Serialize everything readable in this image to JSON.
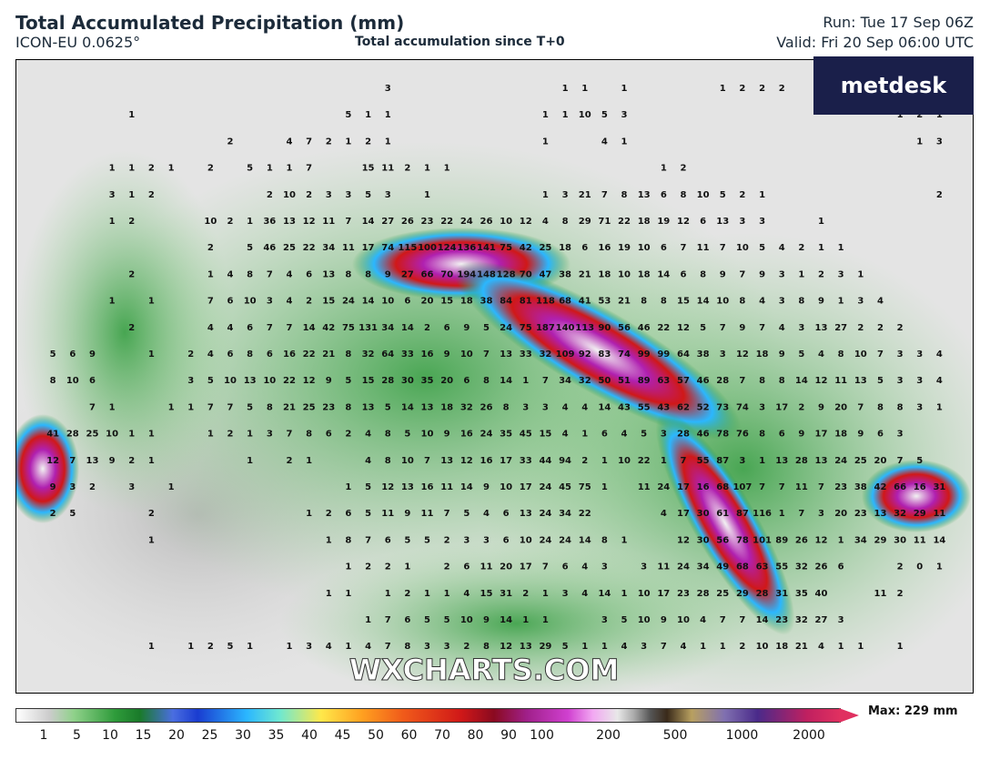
{
  "header": {
    "title": "Total Accumulated Precipitation (mm)",
    "model": "ICON-EU 0.0625°",
    "subtitle": "Total accumulation since T+0",
    "run": "Run: Tue 17 Sep 06Z",
    "valid": "Valid: Fri 20 Sep 06:00 UTC"
  },
  "logo": "metdesk",
  "watermark": "WXCHARTS.COM",
  "colorbar": {
    "ticks": [
      "1",
      "5",
      "10",
      "15",
      "20",
      "25",
      "30",
      "35",
      "40",
      "45",
      "50",
      "60",
      "70",
      "80",
      "90",
      "100",
      "200",
      "500",
      "1000",
      "2000"
    ],
    "max": "Max: 229 mm"
  },
  "map": {
    "rows": [
      [
        null,
        null,
        null,
        null,
        null,
        null,
        null,
        null,
        null,
        null,
        null,
        null,
        null,
        null,
        null,
        null,
        null,
        null,
        3,
        null,
        null,
        null,
        null,
        null,
        null,
        null,
        null,
        1,
        1,
        null,
        1,
        null,
        null,
        null,
        null,
        1,
        2,
        2,
        2
      ],
      [
        null,
        null,
        null,
        null,
        null,
        1,
        null,
        null,
        null,
        null,
        null,
        null,
        null,
        null,
        null,
        null,
        5,
        1,
        1,
        null,
        null,
        null,
        null,
        null,
        null,
        null,
        1,
        1,
        10,
        5,
        3,
        null,
        null,
        null,
        null,
        null,
        null,
        null,
        null,
        null,
        null,
        null,
        null,
        null,
        1,
        2,
        1
      ],
      [
        null,
        null,
        null,
        null,
        null,
        null,
        null,
        null,
        null,
        null,
        2,
        null,
        null,
        4,
        7,
        2,
        1,
        2,
        1,
        null,
        null,
        null,
        null,
        null,
        null,
        null,
        1,
        null,
        null,
        4,
        1,
        null,
        null,
        null,
        null,
        null,
        null,
        null,
        null,
        null,
        null,
        null,
        null,
        null,
        null,
        1,
        3
      ],
      [
        null,
        null,
        null,
        null,
        1,
        1,
        2,
        1,
        null,
        2,
        null,
        5,
        1,
        1,
        7,
        null,
        null,
        15,
        11,
        2,
        1,
        1,
        null,
        null,
        null,
        null,
        null,
        null,
        null,
        null,
        null,
        null,
        1,
        2
      ],
      [
        null,
        null,
        null,
        null,
        3,
        1,
        2,
        null,
        null,
        null,
        null,
        null,
        2,
        10,
        2,
        3,
        3,
        5,
        3,
        null,
        1,
        null,
        null,
        null,
        null,
        null,
        1,
        3,
        21,
        7,
        8,
        13,
        6,
        8,
        10,
        5,
        2,
        1,
        null,
        null,
        null,
        null,
        null,
        null,
        null,
        null,
        2
      ],
      [
        null,
        null,
        null,
        null,
        1,
        2,
        null,
        null,
        null,
        10,
        2,
        1,
        36,
        13,
        12,
        11,
        7,
        14,
        27,
        26,
        23,
        22,
        24,
        26,
        10,
        12,
        4,
        8,
        29,
        71,
        22,
        18,
        19,
        12,
        6,
        13,
        3,
        3,
        null,
        null,
        1
      ],
      [
        null,
        null,
        null,
        null,
        null,
        null,
        null,
        null,
        null,
        2,
        null,
        5,
        46,
        25,
        22,
        34,
        11,
        17,
        74,
        115,
        100,
        124,
        136,
        141,
        75,
        42,
        25,
        18,
        6,
        16,
        19,
        10,
        6,
        7,
        11,
        7,
        10,
        5,
        4,
        2,
        1,
        1
      ],
      [
        null,
        null,
        null,
        null,
        null,
        2,
        null,
        null,
        null,
        1,
        4,
        8,
        7,
        4,
        6,
        13,
        8,
        8,
        9,
        27,
        66,
        70,
        194,
        148,
        128,
        70,
        47,
        38,
        21,
        18,
        10,
        18,
        14,
        6,
        8,
        9,
        7,
        9,
        3,
        1,
        2,
        3,
        1
      ],
      [
        null,
        null,
        null,
        null,
        1,
        null,
        1,
        null,
        null,
        7,
        6,
        10,
        3,
        4,
        2,
        15,
        24,
        14,
        10,
        6,
        20,
        15,
        18,
        38,
        84,
        81,
        118,
        68,
        41,
        53,
        21,
        8,
        8,
        15,
        14,
        10,
        8,
        4,
        3,
        8,
        9,
        1,
        3,
        4
      ],
      [
        null,
        null,
        null,
        null,
        null,
        2,
        null,
        null,
        null,
        4,
        4,
        6,
        7,
        7,
        14,
        42,
        75,
        131,
        34,
        14,
        2,
        6,
        9,
        5,
        24,
        75,
        187,
        140,
        113,
        90,
        56,
        46,
        22,
        12,
        5,
        7,
        9,
        7,
        4,
        3,
        13,
        27,
        2,
        2,
        2
      ],
      [
        null,
        5,
        6,
        9,
        null,
        null,
        1,
        null,
        2,
        4,
        6,
        8,
        6,
        16,
        22,
        21,
        8,
        32,
        64,
        33,
        16,
        9,
        10,
        7,
        13,
        33,
        32,
        109,
        92,
        83,
        74,
        99,
        99,
        64,
        38,
        3,
        12,
        18,
        9,
        5,
        4,
        8,
        10,
        7,
        3,
        3,
        4
      ],
      [
        null,
        8,
        10,
        6,
        null,
        null,
        null,
        null,
        3,
        5,
        10,
        13,
        10,
        22,
        12,
        9,
        5,
        15,
        28,
        30,
        35,
        20,
        6,
        8,
        14,
        1,
        7,
        34,
        32,
        50,
        51,
        89,
        63,
        57,
        46,
        28,
        7,
        8,
        8,
        14,
        12,
        11,
        13,
        5,
        3,
        3,
        4
      ],
      [
        null,
        null,
        null,
        7,
        1,
        null,
        null,
        1,
        1,
        7,
        7,
        5,
        8,
        21,
        25,
        23,
        8,
        13,
        5,
        14,
        13,
        18,
        32,
        26,
        8,
        3,
        3,
        4,
        4,
        14,
        43,
        55,
        43,
        62,
        52,
        73,
        74,
        3,
        17,
        2,
        9,
        20,
        7,
        8,
        8,
        3,
        1
      ],
      [
        null,
        41,
        28,
        25,
        10,
        1,
        1,
        null,
        null,
        1,
        2,
        1,
        3,
        7,
        8,
        6,
        2,
        4,
        8,
        5,
        10,
        9,
        16,
        24,
        35,
        45,
        15,
        4,
        1,
        6,
        4,
        5,
        3,
        28,
        46,
        78,
        76,
        8,
        6,
        9,
        17,
        18,
        9,
        6,
        3
      ],
      [
        null,
        12,
        7,
        13,
        9,
        2,
        1,
        null,
        null,
        null,
        null,
        1,
        null,
        2,
        1,
        null,
        null,
        4,
        8,
        10,
        7,
        13,
        12,
        16,
        17,
        33,
        44,
        94,
        2,
        1,
        10,
        22,
        1,
        7,
        55,
        87,
        3,
        1,
        13,
        28,
        13,
        24,
        25,
        20,
        7,
        5
      ],
      [
        null,
        9,
        3,
        2,
        null,
        3,
        null,
        1,
        null,
        null,
        null,
        null,
        null,
        null,
        null,
        null,
        1,
        5,
        12,
        13,
        16,
        11,
        14,
        9,
        10,
        17,
        24,
        45,
        75,
        1,
        null,
        11,
        24,
        17,
        16,
        68,
        107,
        7,
        7,
        11,
        7,
        23,
        38,
        42,
        66,
        16,
        31
      ],
      [
        null,
        2,
        5,
        null,
        null,
        null,
        2,
        null,
        null,
        null,
        null,
        null,
        null,
        null,
        1,
        2,
        6,
        5,
        11,
        9,
        11,
        7,
        5,
        4,
        6,
        13,
        24,
        34,
        22,
        null,
        null,
        null,
        4,
        17,
        30,
        61,
        87,
        116,
        1,
        7,
        3,
        20,
        23,
        13,
        32,
        29,
        11
      ],
      [
        null,
        null,
        null,
        null,
        null,
        null,
        1,
        null,
        null,
        null,
        null,
        null,
        null,
        null,
        null,
        1,
        8,
        7,
        6,
        5,
        5,
        2,
        3,
        3,
        6,
        10,
        24,
        24,
        14,
        8,
        1,
        null,
        null,
        12,
        30,
        56,
        78,
        101,
        89,
        26,
        12,
        1,
        34,
        29,
        30,
        11,
        14
      ],
      [
        null,
        null,
        null,
        null,
        null,
        null,
        null,
        null,
        null,
        null,
        null,
        null,
        null,
        null,
        null,
        null,
        1,
        2,
        2,
        1,
        null,
        2,
        6,
        11,
        20,
        17,
        7,
        6,
        4,
        3,
        null,
        3,
        11,
        24,
        34,
        49,
        68,
        63,
        55,
        32,
        26,
        6,
        null,
        null,
        2,
        0,
        1
      ],
      [
        null,
        null,
        null,
        null,
        null,
        null,
        null,
        null,
        null,
        null,
        null,
        null,
        null,
        null,
        null,
        1,
        1,
        null,
        1,
        2,
        1,
        1,
        4,
        15,
        31,
        2,
        1,
        3,
        4,
        14,
        1,
        10,
        17,
        23,
        28,
        25,
        29,
        28,
        31,
        35,
        40,
        null,
        null,
        11,
        2
      ],
      [
        null,
        null,
        null,
        null,
        null,
        null,
        null,
        null,
        null,
        null,
        null,
        null,
        null,
        null,
        null,
        null,
        null,
        1,
        7,
        6,
        5,
        5,
        10,
        9,
        14,
        1,
        1,
        null,
        null,
        3,
        5,
        10,
        9,
        10,
        4,
        7,
        7,
        14,
        23,
        32,
        27,
        3
      ],
      [
        null,
        null,
        null,
        null,
        null,
        null,
        1,
        null,
        1,
        2,
        5,
        1,
        null,
        1,
        3,
        4,
        1,
        4,
        7,
        8,
        3,
        3,
        2,
        8,
        12,
        13,
        29,
        5,
        1,
        1,
        4,
        3,
        7,
        4,
        1,
        1,
        2,
        10,
        18,
        21,
        4,
        1,
        1,
        null,
        1
      ]
    ]
  }
}
